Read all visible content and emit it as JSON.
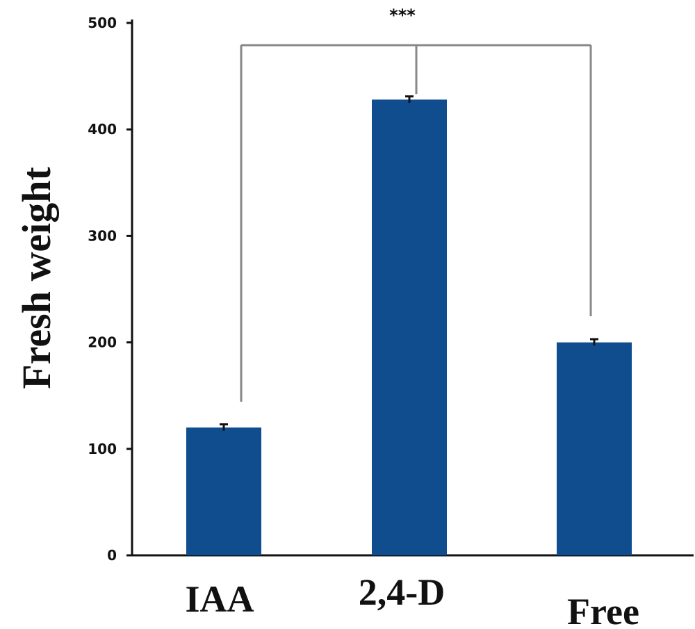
{
  "chart_data": {
    "type": "bar",
    "categories": [
      "IAA",
      "2,4-D",
      "Free"
    ],
    "values": [
      120,
      428,
      200
    ],
    "errors": [
      3,
      3,
      3
    ],
    "ylabel": "Fresh weight",
    "xlabel": "",
    "ylim": [
      0,
      500
    ],
    "yticks": [
      "0",
      "100",
      "200",
      "300",
      "400",
      "500"
    ],
    "bar_color": "#0f4d8f",
    "significance": {
      "label": "***",
      "groups": [
        "IAA",
        "2,4-D",
        "Free"
      ]
    },
    "grid": false,
    "legend": "none"
  }
}
